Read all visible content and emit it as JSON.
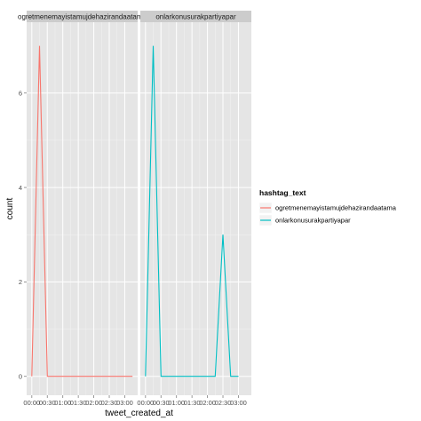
{
  "chart_data": {
    "type": "line",
    "facet_by": "hashtag_text",
    "panels": [
      {
        "strip_label": "ogretmenemayistamujdehazirandaatama",
        "series_ref": 0
      },
      {
        "strip_label": "onlarkonusurakpartiyapar",
        "series_ref": 1
      }
    ],
    "x_ticks": [
      "00:00",
      "00:30",
      "01:00",
      "01:30",
      "02:00",
      "02:30",
      "03:00"
    ],
    "x_tick_values": [
      0,
      30,
      60,
      90,
      120,
      150,
      180
    ],
    "xlim": [
      -10,
      205
    ],
    "y_ticks": [
      "0",
      "2",
      "4",
      "6"
    ],
    "y_tick_values": [
      0,
      2,
      4,
      6
    ],
    "ylim": [
      -0.4,
      7.5
    ],
    "xlabel": "tweet_created_at",
    "ylabel": "count",
    "legend": {
      "title": "hashtag_text",
      "position": "right",
      "items": [
        "ogretmenemayistamujdehazirandaatama",
        "onlarkonusurakpartiyapar"
      ]
    },
    "series": [
      {
        "name": "ogretmenemayistamujdehazirandaatama",
        "color": "#F8766D",
        "x": [
          0,
          15,
          30,
          45,
          60,
          75,
          90,
          105,
          120,
          135,
          150,
          165,
          180,
          195
        ],
        "y": [
          0,
          7,
          0,
          0,
          0,
          0,
          0,
          0,
          0,
          0,
          0,
          0,
          0,
          0
        ]
      },
      {
        "name": "onlarkonusurakpartiyapar",
        "color": "#00BFC4",
        "x": [
          0,
          15,
          30,
          45,
          60,
          75,
          90,
          105,
          120,
          135,
          150,
          165,
          180
        ],
        "y": [
          0,
          7,
          0,
          0,
          0,
          0,
          0,
          0,
          0,
          0,
          3,
          0,
          0
        ]
      }
    ],
    "panel_background": "#E5E5E5",
    "strip_background": "#CCCCCC",
    "grid": true
  }
}
